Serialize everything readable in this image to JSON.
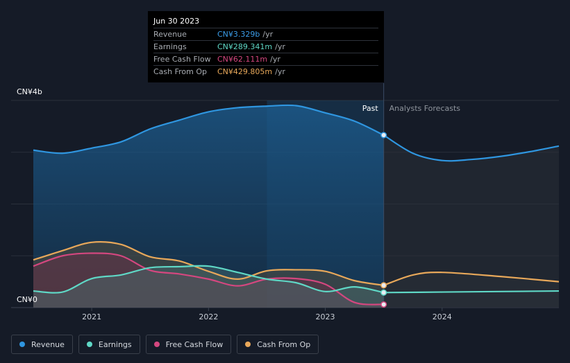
{
  "colors": {
    "revenue": "#2f96e0",
    "earnings": "#5fd8c6",
    "free_cash_flow": "#d4477f",
    "cash_from_op": "#e8a85a"
  },
  "tooltip": {
    "date": "Jun 30 2023",
    "rows": [
      {
        "label": "Revenue",
        "value": "CN¥3.329b",
        "unit": "/yr",
        "color": "#3b9de8"
      },
      {
        "label": "Earnings",
        "value": "CN¥289.341m",
        "unit": "/yr",
        "color": "#5fd8c6"
      },
      {
        "label": "Free Cash Flow",
        "value": "CN¥62.111m",
        "unit": "/yr",
        "color": "#d4477f"
      },
      {
        "label": "Cash From Op",
        "value": "CN¥429.805m",
        "unit": "/yr",
        "color": "#e8a85a"
      }
    ]
  },
  "chart_data": {
    "type": "line",
    "y_tick_labels": {
      "top": "CN¥4b",
      "bottom": "CN¥0"
    },
    "ylim": [
      0,
      4
    ],
    "xlim": [
      2020.5,
      2025.0
    ],
    "x_tick_labels": [
      "2021",
      "2022",
      "2023",
      "2024"
    ],
    "x_ticks": [
      2021,
      2022,
      2023,
      2024
    ],
    "past_label": "Past",
    "forecast_label": "Analysts Forecasts",
    "divider_x": 2023.5,
    "highlight_start_x": 2022.5,
    "grid": true,
    "series": [
      {
        "name": "Revenue",
        "key": "revenue",
        "x": [
          2020.5,
          2020.75,
          2021.0,
          2021.25,
          2021.5,
          2021.75,
          2022.0,
          2022.25,
          2022.5,
          2022.75,
          2023.0,
          2023.25,
          2023.5
        ],
        "y": [
          3.04,
          2.98,
          3.08,
          3.2,
          3.45,
          3.62,
          3.78,
          3.86,
          3.89,
          3.9,
          3.76,
          3.6,
          3.33
        ],
        "forecast_x": [
          2023.5,
          2023.75,
          2024.0,
          2024.25,
          2024.5,
          2024.75,
          2025.0
        ],
        "forecast_y": [
          3.33,
          2.98,
          2.84,
          2.86,
          2.92,
          3.01,
          3.12
        ]
      },
      {
        "name": "Earnings",
        "key": "earnings",
        "x": [
          2020.5,
          2020.75,
          2021.0,
          2021.25,
          2021.5,
          2021.75,
          2022.0,
          2022.25,
          2022.5,
          2022.75,
          2023.0,
          2023.25,
          2023.5
        ],
        "y": [
          0.32,
          0.3,
          0.56,
          0.63,
          0.77,
          0.79,
          0.8,
          0.68,
          0.55,
          0.48,
          0.31,
          0.4,
          0.29
        ],
        "forecast_x": [
          2023.5,
          2024.0,
          2024.5,
          2025.0
        ],
        "forecast_y": [
          0.29,
          0.3,
          0.31,
          0.32
        ]
      },
      {
        "name": "Free Cash Flow",
        "key": "free_cash_flow",
        "x": [
          2020.5,
          2020.75,
          2021.0,
          2021.25,
          2021.5,
          2021.75,
          2022.0,
          2022.25,
          2022.5,
          2022.75,
          2023.0,
          2023.25,
          2023.5
        ],
        "y": [
          0.8,
          1.0,
          1.05,
          1.0,
          0.72,
          0.65,
          0.55,
          0.42,
          0.55,
          0.56,
          0.45,
          0.1,
          0.06
        ],
        "forecast_x": [],
        "forecast_y": []
      },
      {
        "name": "Cash From Op",
        "key": "cash_from_op",
        "x": [
          2020.5,
          2020.75,
          2021.0,
          2021.25,
          2021.5,
          2021.75,
          2022.0,
          2022.25,
          2022.5,
          2022.75,
          2023.0,
          2023.25,
          2023.5
        ],
        "y": [
          0.92,
          1.1,
          1.26,
          1.22,
          0.98,
          0.9,
          0.7,
          0.55,
          0.71,
          0.73,
          0.7,
          0.52,
          0.43
        ],
        "forecast_x": [
          2023.5,
          2023.75,
          2024.0,
          2024.5,
          2025.0
        ],
        "forecast_y": [
          0.43,
          0.63,
          0.68,
          0.6,
          0.5
        ]
      }
    ]
  },
  "legend": [
    {
      "label": "Revenue",
      "key": "revenue"
    },
    {
      "label": "Earnings",
      "key": "earnings"
    },
    {
      "label": "Free Cash Flow",
      "key": "free_cash_flow"
    },
    {
      "label": "Cash From Op",
      "key": "cash_from_op"
    }
  ]
}
